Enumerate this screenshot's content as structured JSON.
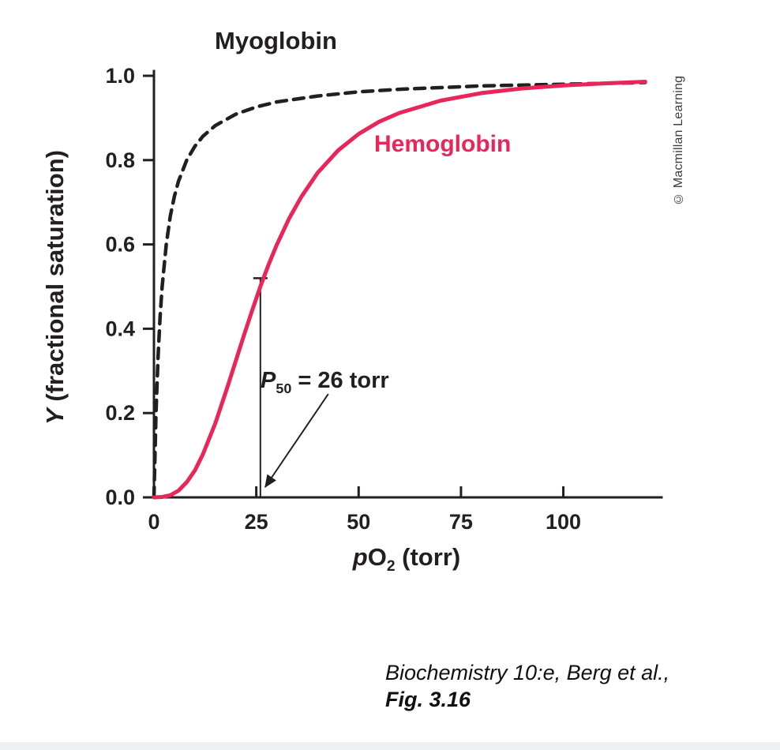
{
  "figure": {
    "myoglobin_label": "Myoglobin",
    "hemoglobin_label": "Hemoglobin",
    "p50": {
      "symbol": "P",
      "subscript": "50",
      "rest": " = 26 torr"
    },
    "ylabel": {
      "symbol": "Y",
      "rest": " (fractional saturation)"
    },
    "xlabel": {
      "p": "p",
      "o": "O",
      "sub": "2",
      "rest": " (torr)"
    },
    "copyright": "© Macmillan Learning",
    "caption_line1": "Biochemistry 10:e, Berg et al.,",
    "caption_line2": "Fig. 3.16"
  },
  "chart_data": {
    "type": "line",
    "title": "",
    "xlabel": "pO2 (torr)",
    "ylabel": "Y (fractional saturation)",
    "xlim": [
      0,
      124
    ],
    "ylim": [
      0,
      1.0
    ],
    "x_ticks": [
      0,
      25,
      50,
      75,
      100
    ],
    "x_tick_labels": [
      "0",
      "25",
      "50",
      "75",
      "100"
    ],
    "y_ticks": [
      0.0,
      0.2,
      0.4,
      0.6,
      0.8,
      1.0
    ],
    "y_tick_labels": [
      "0.0",
      "0.2",
      "0.4",
      "0.6",
      "0.8",
      "1.0"
    ],
    "axis_color": "#231f20",
    "grid": false,
    "annotation": {
      "label": "P50 = 26 torr",
      "x": 26,
      "y_top": 0.52
    },
    "series": [
      {
        "name": "Myoglobin",
        "color": "#231f20",
        "style": "dashed",
        "dash": "13 9",
        "width": 4.5,
        "x": [
          0,
          0.5,
          1,
          1.5,
          2,
          3,
          4,
          5,
          6,
          8,
          10,
          12,
          15,
          20,
          25,
          30,
          40,
          50,
          60,
          80,
          100,
          120
        ],
        "y": [
          0,
          0.2,
          0.333,
          0.429,
          0.5,
          0.6,
          0.667,
          0.714,
          0.75,
          0.8,
          0.833,
          0.857,
          0.882,
          0.909,
          0.926,
          0.938,
          0.952,
          0.962,
          0.968,
          0.976,
          0.98,
          0.984
        ]
      },
      {
        "name": "Hemoglobin",
        "color": "#e8265a",
        "style": "solid",
        "dash": "",
        "width": 5,
        "x": [
          0,
          2,
          4,
          6,
          8,
          10,
          12,
          15,
          18,
          20,
          22,
          24,
          26,
          28,
          30,
          33,
          36,
          40,
          45,
          50,
          55,
          60,
          70,
          80,
          90,
          100,
          110,
          120
        ],
        "y": [
          0,
          0.001,
          0.005,
          0.016,
          0.036,
          0.064,
          0.103,
          0.176,
          0.263,
          0.324,
          0.385,
          0.444,
          0.5,
          0.552,
          0.599,
          0.661,
          0.713,
          0.77,
          0.823,
          0.862,
          0.891,
          0.912,
          0.941,
          0.959,
          0.97,
          0.977,
          0.982,
          0.986
        ]
      }
    ]
  }
}
